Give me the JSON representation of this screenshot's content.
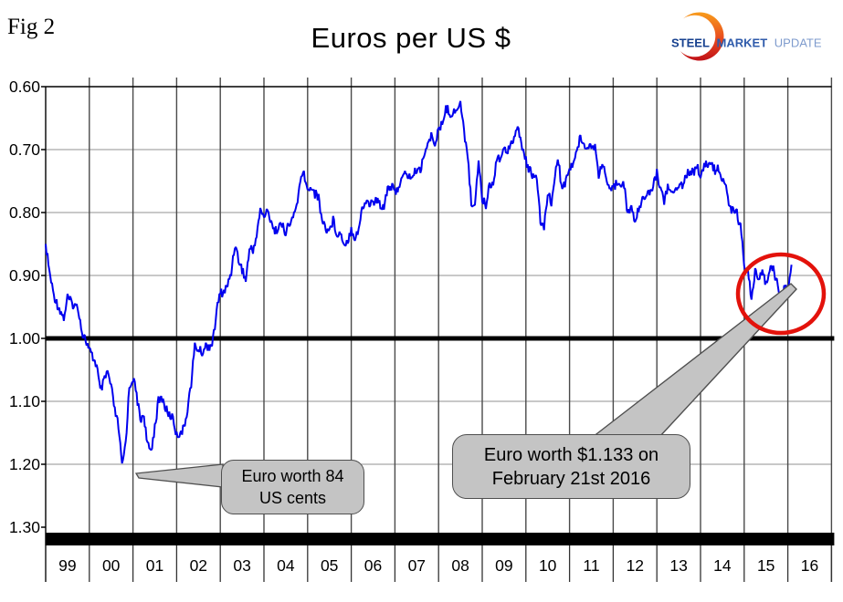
{
  "figure_label": "Fig 2",
  "title": "Euros per US $",
  "logo": {
    "word1": "STEEL",
    "word2": "MARKET",
    "word3": "UPDATE",
    "word1_color": "#17418f",
    "word2_color": "#2f5bab",
    "word3_color": "#7e9bcd",
    "crescent_top_color": "#F89C1C",
    "crescent_mid_color": "#E8491E",
    "crescent_bottom_color": "#C01118"
  },
  "annotations": {
    "low_callout": {
      "line1": "Euro worth 84",
      "line2": "US cents"
    },
    "recent_callout": {
      "line1": "Euro worth $1.133 on",
      "line2": "February 21st 2016"
    }
  },
  "chart_data": {
    "type": "line",
    "title": "Euros per US $",
    "series_name": "Euros per US Dollar",
    "line_color": "#0000ee",
    "grid": true,
    "y_axis_direction": "increases downward",
    "ylim": [
      0.6,
      1.3
    ],
    "y_ticks": [
      0.6,
      0.7,
      0.8,
      0.9,
      1.0,
      1.1,
      1.2,
      1.3
    ],
    "reference_line_value": 1.0,
    "x_tick_labels": [
      "99",
      "00",
      "01",
      "02",
      "03",
      "04",
      "05",
      "06",
      "07",
      "08",
      "09",
      "10",
      "11",
      "12",
      "13",
      "14",
      "15",
      "16"
    ],
    "x_months_start": "1999-01",
    "x_months_end": "2016-02",
    "key_points": [
      {
        "label": "Euro worth 84 US cents",
        "date": "2000-10",
        "value": 1.21
      },
      {
        "label": "Euro worth $1.133 on February 21st 2016",
        "date": "2016-02-21",
        "value": 0.883
      }
    ],
    "highlight_circle_color": "#e3120b",
    "values_monthly": [
      0.85,
      0.893,
      0.926,
      0.943,
      0.955,
      0.968,
      0.935,
      0.943,
      0.948,
      0.952,
      0.99,
      1.002,
      1.02,
      1.031,
      1.042,
      1.085,
      1.07,
      1.053,
      1.078,
      1.115,
      1.14,
      1.205,
      1.165,
      1.078,
      1.062,
      1.09,
      1.13,
      1.12,
      1.172,
      1.178,
      1.14,
      1.1,
      1.095,
      1.112,
      1.122,
      1.125,
      1.155,
      1.148,
      1.145,
      1.11,
      1.072,
      1.012,
      1.018,
      1.022,
      1.012,
      1.012,
      1.005,
      0.955,
      0.928,
      0.926,
      0.916,
      0.895,
      0.85,
      0.874,
      0.89,
      0.908,
      0.858,
      0.86,
      0.835,
      0.797,
      0.805,
      0.799,
      0.812,
      0.832,
      0.82,
      0.822,
      0.83,
      0.82,
      0.808,
      0.788,
      0.753,
      0.736,
      0.768,
      0.757,
      0.77,
      0.776,
      0.812,
      0.825,
      0.828,
      0.812,
      0.832,
      0.833,
      0.848,
      0.845,
      0.826,
      0.839,
      0.827,
      0.795,
      0.782,
      0.785,
      0.784,
      0.781,
      0.788,
      0.789,
      0.76,
      0.758,
      0.77,
      0.757,
      0.748,
      0.736,
      0.744,
      0.742,
      0.731,
      0.733,
      0.705,
      0.692,
      0.68,
      0.687,
      0.672,
      0.659,
      0.634,
      0.64,
      0.644,
      0.634,
      0.627,
      0.672,
      0.706,
      0.79,
      0.782,
      0.716,
      0.78,
      0.788,
      0.753,
      0.757,
      0.71,
      0.713,
      0.701,
      0.699,
      0.686,
      0.679,
      0.667,
      0.697,
      0.718,
      0.734,
      0.74,
      0.75,
      0.815,
      0.823,
      0.766,
      0.788,
      0.735,
      0.718,
      0.768,
      0.748,
      0.731,
      0.724,
      0.705,
      0.674,
      0.695,
      0.691,
      0.696,
      0.694,
      0.744,
      0.718,
      0.744,
      0.77,
      0.762,
      0.751,
      0.75,
      0.757,
      0.804,
      0.79,
      0.815,
      0.795,
      0.776,
      0.77,
      0.77,
      0.757,
      0.737,
      0.762,
      0.78,
      0.76,
      0.77,
      0.766,
      0.753,
      0.756,
      0.74,
      0.734,
      0.736,
      0.728,
      0.74,
      0.726,
      0.724,
      0.722,
      0.733,
      0.731,
      0.745,
      0.76,
      0.792,
      0.798,
      0.8,
      0.824,
      0.883,
      0.89,
      0.943,
      0.895,
      0.908,
      0.898,
      0.91,
      0.89,
      0.892,
      0.908,
      0.942,
      0.918,
      0.925,
      0.883
    ]
  }
}
